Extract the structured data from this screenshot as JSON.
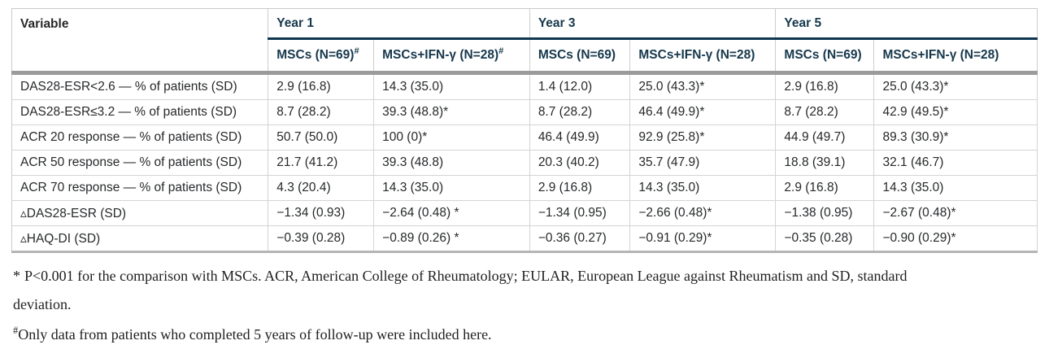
{
  "table": {
    "corner_header": "Variable",
    "year_groups": [
      {
        "label": "Year 1"
      },
      {
        "label": "Year 3"
      },
      {
        "label": "Year 5"
      }
    ],
    "sub_headers": [
      {
        "label": "MSCs (N=69)",
        "sup": "#"
      },
      {
        "label": "MSCs+IFN-γ (N=28)",
        "sup": "#"
      },
      {
        "label": "MSCs (N=69)",
        "sup": ""
      },
      {
        "label": "MSCs+IFN-γ (N=28)",
        "sup": ""
      },
      {
        "label": "MSCs (N=69)",
        "sup": ""
      },
      {
        "label": "MSCs+IFN-γ (N=28)",
        "sup": ""
      }
    ],
    "rows": [
      {
        "label": "DAS28-ESR<2.6 — % of patients (SD)",
        "cells": [
          "2.9 (16.8)",
          "14.3 (35.0)",
          "1.4 (12.0)",
          "25.0 (43.3)*",
          "2.9 (16.8)",
          "25.0 (43.3)*"
        ]
      },
      {
        "label": "DAS28-ESR≤3.2 — % of patients (SD)",
        "cells": [
          "8.7 (28.2)",
          "39.3 (48.8)*",
          "8.7 (28.2)",
          "46.4 (49.9)*",
          "8.7 (28.2)",
          "42.9 (49.5)*"
        ]
      },
      {
        "label": "ACR 20 response — % of patients (SD)",
        "cells": [
          "50.7 (50.0)",
          "100 (0)*",
          "46.4 (49.9)",
          "92.9 (25.8)*",
          "44.9 (49.7)",
          "89.3 (30.9)*"
        ]
      },
      {
        "label": "ACR 50 response — % of patients (SD)",
        "cells": [
          "21.7 (41.2)",
          "39.3 (48.8)",
          "20.3 (40.2)",
          "35.7 (47.9)",
          "18.8 (39.1)",
          "32.1 (46.7)"
        ]
      },
      {
        "label": "ACR 70 response — % of patients (SD)",
        "cells": [
          "4.3 (20.4)",
          "14.3 (35.0)",
          "2.9 (16.8)",
          "14.3 (35.0)",
          "2.9 (16.8)",
          "14.3 (35.0)"
        ]
      },
      {
        "label": "▵DAS28-ESR (SD)",
        "cells": [
          "−1.34 (0.93)",
          "−2.64 (0.48) *",
          "−1.34 (0.95)",
          "−2.66 (0.48)*",
          "−1.38 (0.95)",
          "−2.67 (0.48)*"
        ]
      },
      {
        "label": "▵HAQ-DI (SD)",
        "cells": [
          "−0.39 (0.28)",
          "−0.89 (0.26) *",
          "−0.36 (0.27)",
          "−0.91 (0.29)*",
          "−0.35 (0.28)",
          "−0.90 (0.29)*"
        ]
      }
    ]
  },
  "footnotes": [
    {
      "marker": "*",
      "text": "P<0.001 for the comparison with MSCs. ACR, American College of Rheumatology; EULAR, European League against Rheumatism and SD, standard deviation."
    },
    {
      "marker": "#",
      "text": "Only data from patients who completed 5 years of follow-up were included here."
    }
  ],
  "colors": {
    "header_text": "#16384c",
    "year_underline": "#0e3550",
    "header_band": "#9b9b9b",
    "grid_line": "#d4d4d4",
    "outer_border": "#c9c9c9"
  }
}
